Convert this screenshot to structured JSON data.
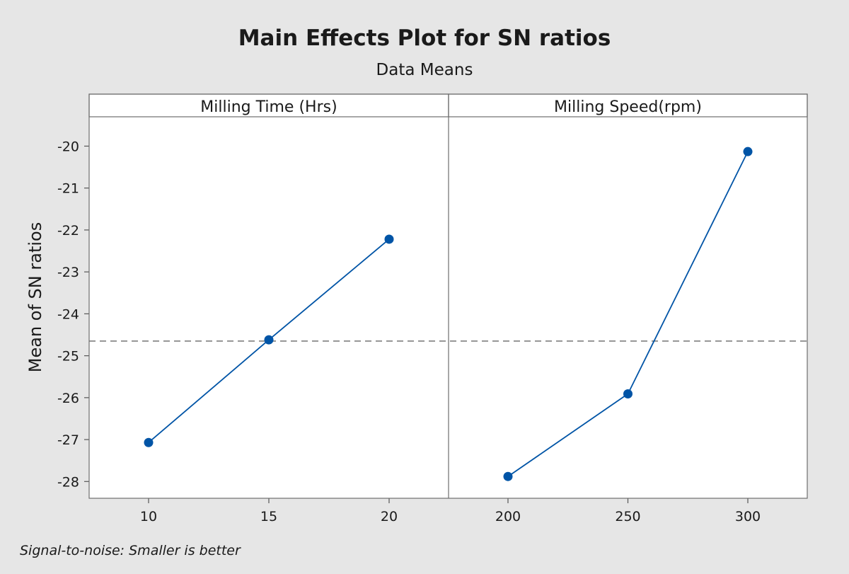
{
  "chart_data": {
    "type": "line",
    "title": "Main Effects Plot for SN ratios",
    "subtitle": "Data Means",
    "ylabel": "Mean of SN ratios",
    "ylim": [
      -28.4,
      -19.3
    ],
    "yticks": [
      -20,
      -21,
      -22,
      -23,
      -24,
      -25,
      -26,
      -27,
      -28
    ],
    "reference_line": -24.65,
    "footnote": "Signal-to-noise: Smaller is better",
    "colors": {
      "series": "#0054a6",
      "reference": "#888888",
      "background": "#e6e6e6",
      "panel": "#ffffff"
    },
    "panels": [
      {
        "name": "Milling Time (Hrs)",
        "x": [
          10,
          15,
          20
        ],
        "xticks": [
          "10",
          "15",
          "20"
        ],
        "values": [
          -27.07,
          -24.62,
          -22.22
        ]
      },
      {
        "name": "Milling Speed(rpm)",
        "x": [
          200,
          250,
          300
        ],
        "xticks": [
          "200",
          "250",
          "300"
        ],
        "values": [
          -27.88,
          -25.91,
          -20.13
        ]
      }
    ]
  }
}
